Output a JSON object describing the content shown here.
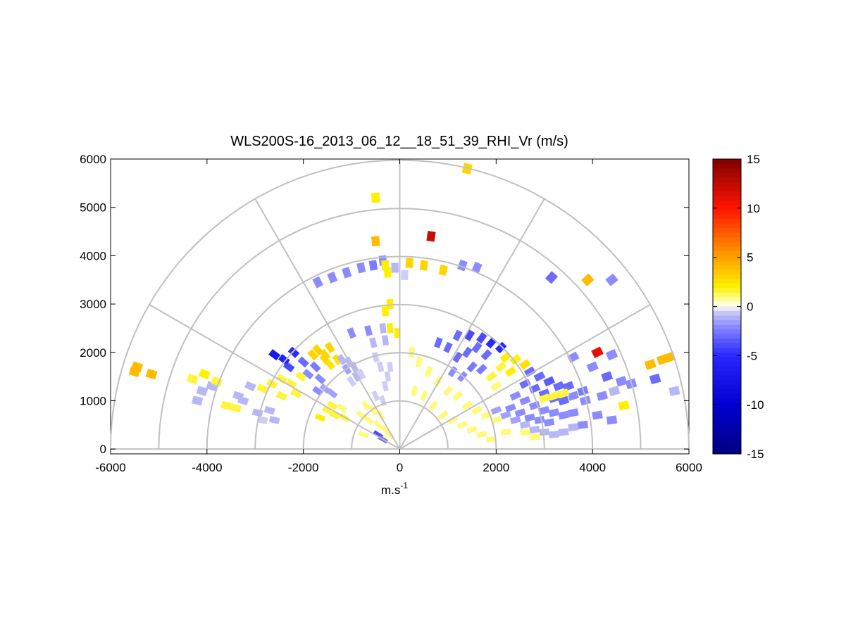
{
  "chart_data": {
    "type": "heatmap",
    "subtype": "polar-rhi",
    "title": "WLS200S-16_2013_06_12__18_51_39_RHI_Vr (m/s)",
    "xlabel_base": "m.s",
    "xlabel_exp": "-1",
    "ylabel": "",
    "xlim": [
      -6000,
      6000
    ],
    "ylim": [
      -100,
      6000
    ],
    "xticks": [
      -6000,
      -4000,
      -2000,
      0,
      2000,
      4000,
      6000
    ],
    "yticks": [
      0,
      1000,
      2000,
      3000,
      4000,
      5000,
      6000
    ],
    "range_rings": [
      1000,
      2000,
      3000,
      4000,
      5000,
      6000
    ],
    "spokes_deg": [
      0,
      30,
      60,
      90,
      120,
      150,
      180
    ],
    "colorbar": {
      "min": -15,
      "max": 15,
      "ticks": [
        15,
        10,
        5,
        0,
        -5,
        -10,
        -15
      ]
    },
    "gates_note": "Radial velocity samples (x m, y m, Vr m/s), approximate reading",
    "gates": [
      [
        -2650,
        1350,
        1.5
      ],
      [
        -2450,
        1450,
        1.5
      ],
      [
        -2250,
        1350,
        1.5
      ],
      [
        -2050,
        1500,
        1.5
      ],
      [
        -2850,
        1250,
        1.5
      ],
      [
        -2450,
        1100,
        1.5
      ],
      [
        -2150,
        1150,
        1.5
      ],
      [
        -2300,
        1700,
        -4
      ],
      [
        -2000,
        1800,
        -3
      ],
      [
        -1750,
        1700,
        -2.5
      ],
      [
        -1900,
        1550,
        -2
      ],
      [
        -1650,
        1450,
        -2
      ],
      [
        -1550,
        1250,
        -1.5
      ],
      [
        -1400,
        1150,
        -1.5
      ],
      [
        -1700,
        1200,
        -2
      ],
      [
        -2400,
        1850,
        -6
      ],
      [
        -2600,
        1950,
        -7
      ],
      [
        -2200,
        2000,
        -5
      ],
      [
        -1800,
        1950,
        3
      ],
      [
        -1700,
        2050,
        3
      ],
      [
        -1550,
        1950,
        3
      ],
      [
        -1450,
        2100,
        3
      ],
      [
        -1550,
        1850,
        3
      ],
      [
        -1450,
        1750,
        2.5
      ],
      [
        -1300,
        1850,
        2.5
      ],
      [
        -1200,
        1850,
        -1
      ],
      [
        -1050,
        1800,
        -1
      ],
      [
        -950,
        1700,
        -1
      ],
      [
        -1100,
        1650,
        -1.5
      ],
      [
        -900,
        1500,
        -1
      ],
      [
        -1000,
        1400,
        -0.5
      ],
      [
        -800,
        1550,
        -0.5
      ],
      [
        -1500,
        800,
        1.5
      ],
      [
        -1350,
        700,
        1.5
      ],
      [
        -1150,
        650,
        1.5
      ],
      [
        -1650,
        650,
        2
      ],
      [
        -1400,
        900,
        1.5
      ],
      [
        -1200,
        850,
        1
      ],
      [
        -700,
        900,
        1
      ],
      [
        -550,
        800,
        1
      ],
      [
        -400,
        700,
        1
      ],
      [
        -650,
        600,
        1
      ],
      [
        -450,
        500,
        1
      ],
      [
        -300,
        400,
        1
      ],
      [
        -200,
        300,
        1
      ],
      [
        -350,
        250,
        1
      ],
      [
        -800,
        700,
        1
      ],
      [
        -750,
        300,
        1
      ],
      [
        -500,
        1100,
        -0.5
      ],
      [
        -350,
        1000,
        -0.5
      ],
      [
        -300,
        1300,
        -0.5
      ],
      [
        -250,
        1500,
        -0.5
      ],
      [
        -200,
        1700,
        -0.5
      ],
      [
        -400,
        1700,
        -0.5
      ],
      [
        -500,
        1900,
        -0.5
      ],
      [
        -450,
        300,
        -4
      ],
      [
        -350,
        200,
        -3
      ],
      [
        -3600,
        900,
        1.5
      ],
      [
        -3400,
        850,
        1.5
      ],
      [
        -3250,
        1000,
        -1
      ],
      [
        -3350,
        1100,
        -1
      ],
      [
        -2950,
        750,
        -1
      ],
      [
        -2700,
        800,
        -1
      ],
      [
        -2600,
        600,
        -1
      ],
      [
        -2850,
        600,
        -0.5
      ],
      [
        -3100,
        1300,
        -1
      ],
      [
        -3900,
        1300,
        -1
      ],
      [
        -4100,
        1200,
        -1
      ],
      [
        -4300,
        1450,
        1.5
      ],
      [
        -3800,
        1400,
        1.5
      ],
      [
        -4200,
        1000,
        -1
      ],
      [
        -4050,
        1550,
        2
      ],
      [
        -5450,
        1700,
        4
      ],
      [
        -5500,
        1600,
        4
      ],
      [
        -5150,
        1550,
        4
      ],
      [
        -1700,
        3450,
        -2
      ],
      [
        -1400,
        3550,
        -2
      ],
      [
        -1100,
        3650,
        -2
      ],
      [
        -800,
        3750,
        -2
      ],
      [
        -550,
        3800,
        -2.5
      ],
      [
        -350,
        3900,
        -2
      ],
      [
        -1000,
        2400,
        -2
      ],
      [
        -650,
        2450,
        -2
      ],
      [
        -350,
        2500,
        -1
      ],
      [
        -200,
        2500,
        2
      ],
      [
        -300,
        2250,
        -1
      ],
      [
        -550,
        2200,
        -1
      ],
      [
        -300,
        2850,
        2
      ],
      [
        -200,
        3000,
        2
      ],
      [
        -50,
        2400,
        2
      ],
      [
        -500,
        4300,
        4
      ],
      [
        -500,
        5200,
        2
      ],
      [
        -300,
        3800,
        2
      ],
      [
        -250,
        3650,
        2
      ],
      [
        -100,
        3750,
        -1
      ],
      [
        200,
        3850,
        3
      ],
      [
        100,
        3600,
        -0.5
      ],
      [
        500,
        3800,
        3
      ],
      [
        650,
        4400,
        12
      ],
      [
        1400,
        5800,
        3
      ],
      [
        900,
        3700,
        3
      ],
      [
        1300,
        3800,
        -2
      ],
      [
        1600,
        3750,
        -2
      ],
      [
        250,
        2000,
        1
      ],
      [
        400,
        1800,
        1
      ],
      [
        600,
        1600,
        1
      ],
      [
        800,
        1400,
        1
      ],
      [
        1000,
        1200,
        1
      ],
      [
        1200,
        1100,
        1
      ],
      [
        1400,
        900,
        1
      ],
      [
        1600,
        800,
        1
      ],
      [
        1800,
        700,
        1
      ],
      [
        2000,
        600,
        1
      ],
      [
        300,
        1200,
        1
      ],
      [
        500,
        1100,
        1
      ],
      [
        700,
        900,
        1
      ],
      [
        900,
        700,
        1
      ],
      [
        1100,
        600,
        1
      ],
      [
        1300,
        500,
        1
      ],
      [
        1500,
        400,
        1
      ],
      [
        1700,
        300,
        1
      ],
      [
        1900,
        200,
        1
      ],
      [
        800,
        2200,
        -3
      ],
      [
        1000,
        2100,
        -3
      ],
      [
        1200,
        1900,
        -3
      ],
      [
        1400,
        2000,
        -3
      ],
      [
        1600,
        2100,
        -3
      ],
      [
        1800,
        1950,
        -3
      ],
      [
        1100,
        1600,
        -2
      ],
      [
        1300,
        1500,
        -2
      ],
      [
        1500,
        1700,
        -2.5
      ],
      [
        1700,
        1650,
        -2.5
      ],
      [
        1900,
        2200,
        -5
      ],
      [
        2100,
        2100,
        -5
      ],
      [
        1700,
        2300,
        -4
      ],
      [
        1450,
        2350,
        -4
      ],
      [
        1200,
        2350,
        -3
      ],
      [
        2200,
        1900,
        2
      ],
      [
        2400,
        1850,
        2
      ],
      [
        2600,
        1750,
        2.5
      ],
      [
        2100,
        1700,
        1.5
      ],
      [
        2300,
        1600,
        2
      ],
      [
        1900,
        1500,
        1.5
      ],
      [
        2000,
        1300,
        1
      ],
      [
        2700,
        1600,
        -3
      ],
      [
        2900,
        1500,
        -3
      ],
      [
        3100,
        1400,
        -3.5
      ],
      [
        3300,
        1300,
        -3
      ],
      [
        3500,
        1300,
        -3
      ],
      [
        2600,
        1350,
        -3
      ],
      [
        2800,
        1250,
        -3
      ],
      [
        3000,
        1150,
        -3
      ],
      [
        3200,
        1050,
        -3
      ],
      [
        3400,
        1000,
        -3
      ],
      [
        3600,
        1100,
        -2
      ],
      [
        3800,
        1200,
        -2.5
      ],
      [
        2400,
        1100,
        -2
      ],
      [
        2600,
        1000,
        -2
      ],
      [
        2800,
        900,
        -2
      ],
      [
        3000,
        800,
        -2
      ],
      [
        3200,
        750,
        -2
      ],
      [
        3400,
        700,
        -2
      ],
      [
        3600,
        750,
        -2
      ],
      [
        2300,
        850,
        -2
      ],
      [
        2500,
        750,
        -2
      ],
      [
        2700,
        650,
        -2
      ],
      [
        2900,
        600,
        -2
      ],
      [
        3100,
        550,
        -2
      ],
      [
        2000,
        800,
        -1.5
      ],
      [
        2200,
        700,
        -1.5
      ],
      [
        2400,
        600,
        -1.5
      ],
      [
        2600,
        500,
        -1
      ],
      [
        2800,
        400,
        -1
      ],
      [
        3000,
        350,
        -1
      ],
      [
        3200,
        300,
        -1
      ],
      [
        3400,
        350,
        -1
      ],
      [
        3600,
        450,
        -1
      ],
      [
        3800,
        500,
        -2
      ],
      [
        3200,
        1100,
        1.5
      ],
      [
        3000,
        1050,
        1.5
      ],
      [
        3400,
        1150,
        1.5
      ],
      [
        2600,
        350,
        1
      ],
      [
        2800,
        250,
        1
      ],
      [
        2200,
        350,
        1
      ],
      [
        4100,
        2000,
        11
      ],
      [
        4400,
        1950,
        -2
      ],
      [
        4000,
        1700,
        -2
      ],
      [
        4300,
        1500,
        -3
      ],
      [
        4600,
        1400,
        -2
      ],
      [
        4800,
        1350,
        -2
      ],
      [
        4200,
        1100,
        -2
      ],
      [
        4450,
        1200,
        -1
      ],
      [
        4650,
        900,
        2
      ],
      [
        4100,
        700,
        -2
      ],
      [
        4400,
        600,
        -2
      ],
      [
        3850,
        1000,
        -2
      ],
      [
        5200,
        1750,
        4
      ],
      [
        5450,
        1850,
        4
      ],
      [
        5600,
        1900,
        4
      ],
      [
        5300,
        1450,
        -3
      ],
      [
        5700,
        1200,
        -1
      ],
      [
        3150,
        3550,
        -3
      ],
      [
        3900,
        3500,
        4
      ],
      [
        4400,
        3500,
        -2
      ],
      [
        3600,
        1900,
        -2
      ]
    ]
  }
}
